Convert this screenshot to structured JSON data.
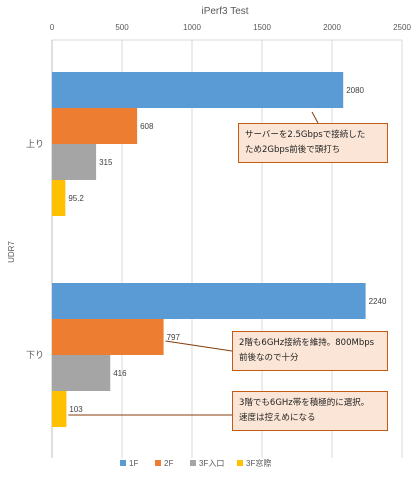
{
  "chart_data": {
    "type": "bar",
    "orientation": "horizontal",
    "title": "iPerf3 Test",
    "ylabel": "UDR7",
    "xlim": [
      0,
      2500
    ],
    "xticks": [
      0,
      500,
      1000,
      1500,
      2000,
      2500
    ],
    "x_axis_position": "top",
    "grid": true,
    "legend_position": "bottom",
    "categories": [
      "上り",
      "下り"
    ],
    "series": [
      {
        "name": "1F",
        "color": "#5b9bd5",
        "values": [
          2080,
          2240
        ],
        "labels": [
          "2080",
          "2240"
        ]
      },
      {
        "name": "2F",
        "color": "#ed7d31",
        "values": [
          608,
          797
        ],
        "labels": [
          "608",
          "797"
        ]
      },
      {
        "name": "3F入口",
        "color": "#a5a5a5",
        "values": [
          315,
          416
        ],
        "labels": [
          "315",
          "416"
        ]
      },
      {
        "name": "3F窓際",
        "color": "#ffc000",
        "values": [
          95.2,
          103
        ],
        "labels": [
          "95.2",
          "103"
        ]
      }
    ],
    "annotations": [
      {
        "lines": [
          "サーバーを2.5Gbpsで接続した",
          "ため2Gbps前後で頭打ち"
        ],
        "target_category": 0,
        "target_series": 0
      },
      {
        "lines": [
          "2階も6GHz接続を維持。800Mbps",
          "前後なので十分"
        ],
        "target_category": 1,
        "target_series": 1
      },
      {
        "lines": [
          "3階でも6GHz帯を積極的に選択。",
          "速度は控えめになる"
        ],
        "target_category": 1,
        "target_series": 3
      }
    ]
  }
}
